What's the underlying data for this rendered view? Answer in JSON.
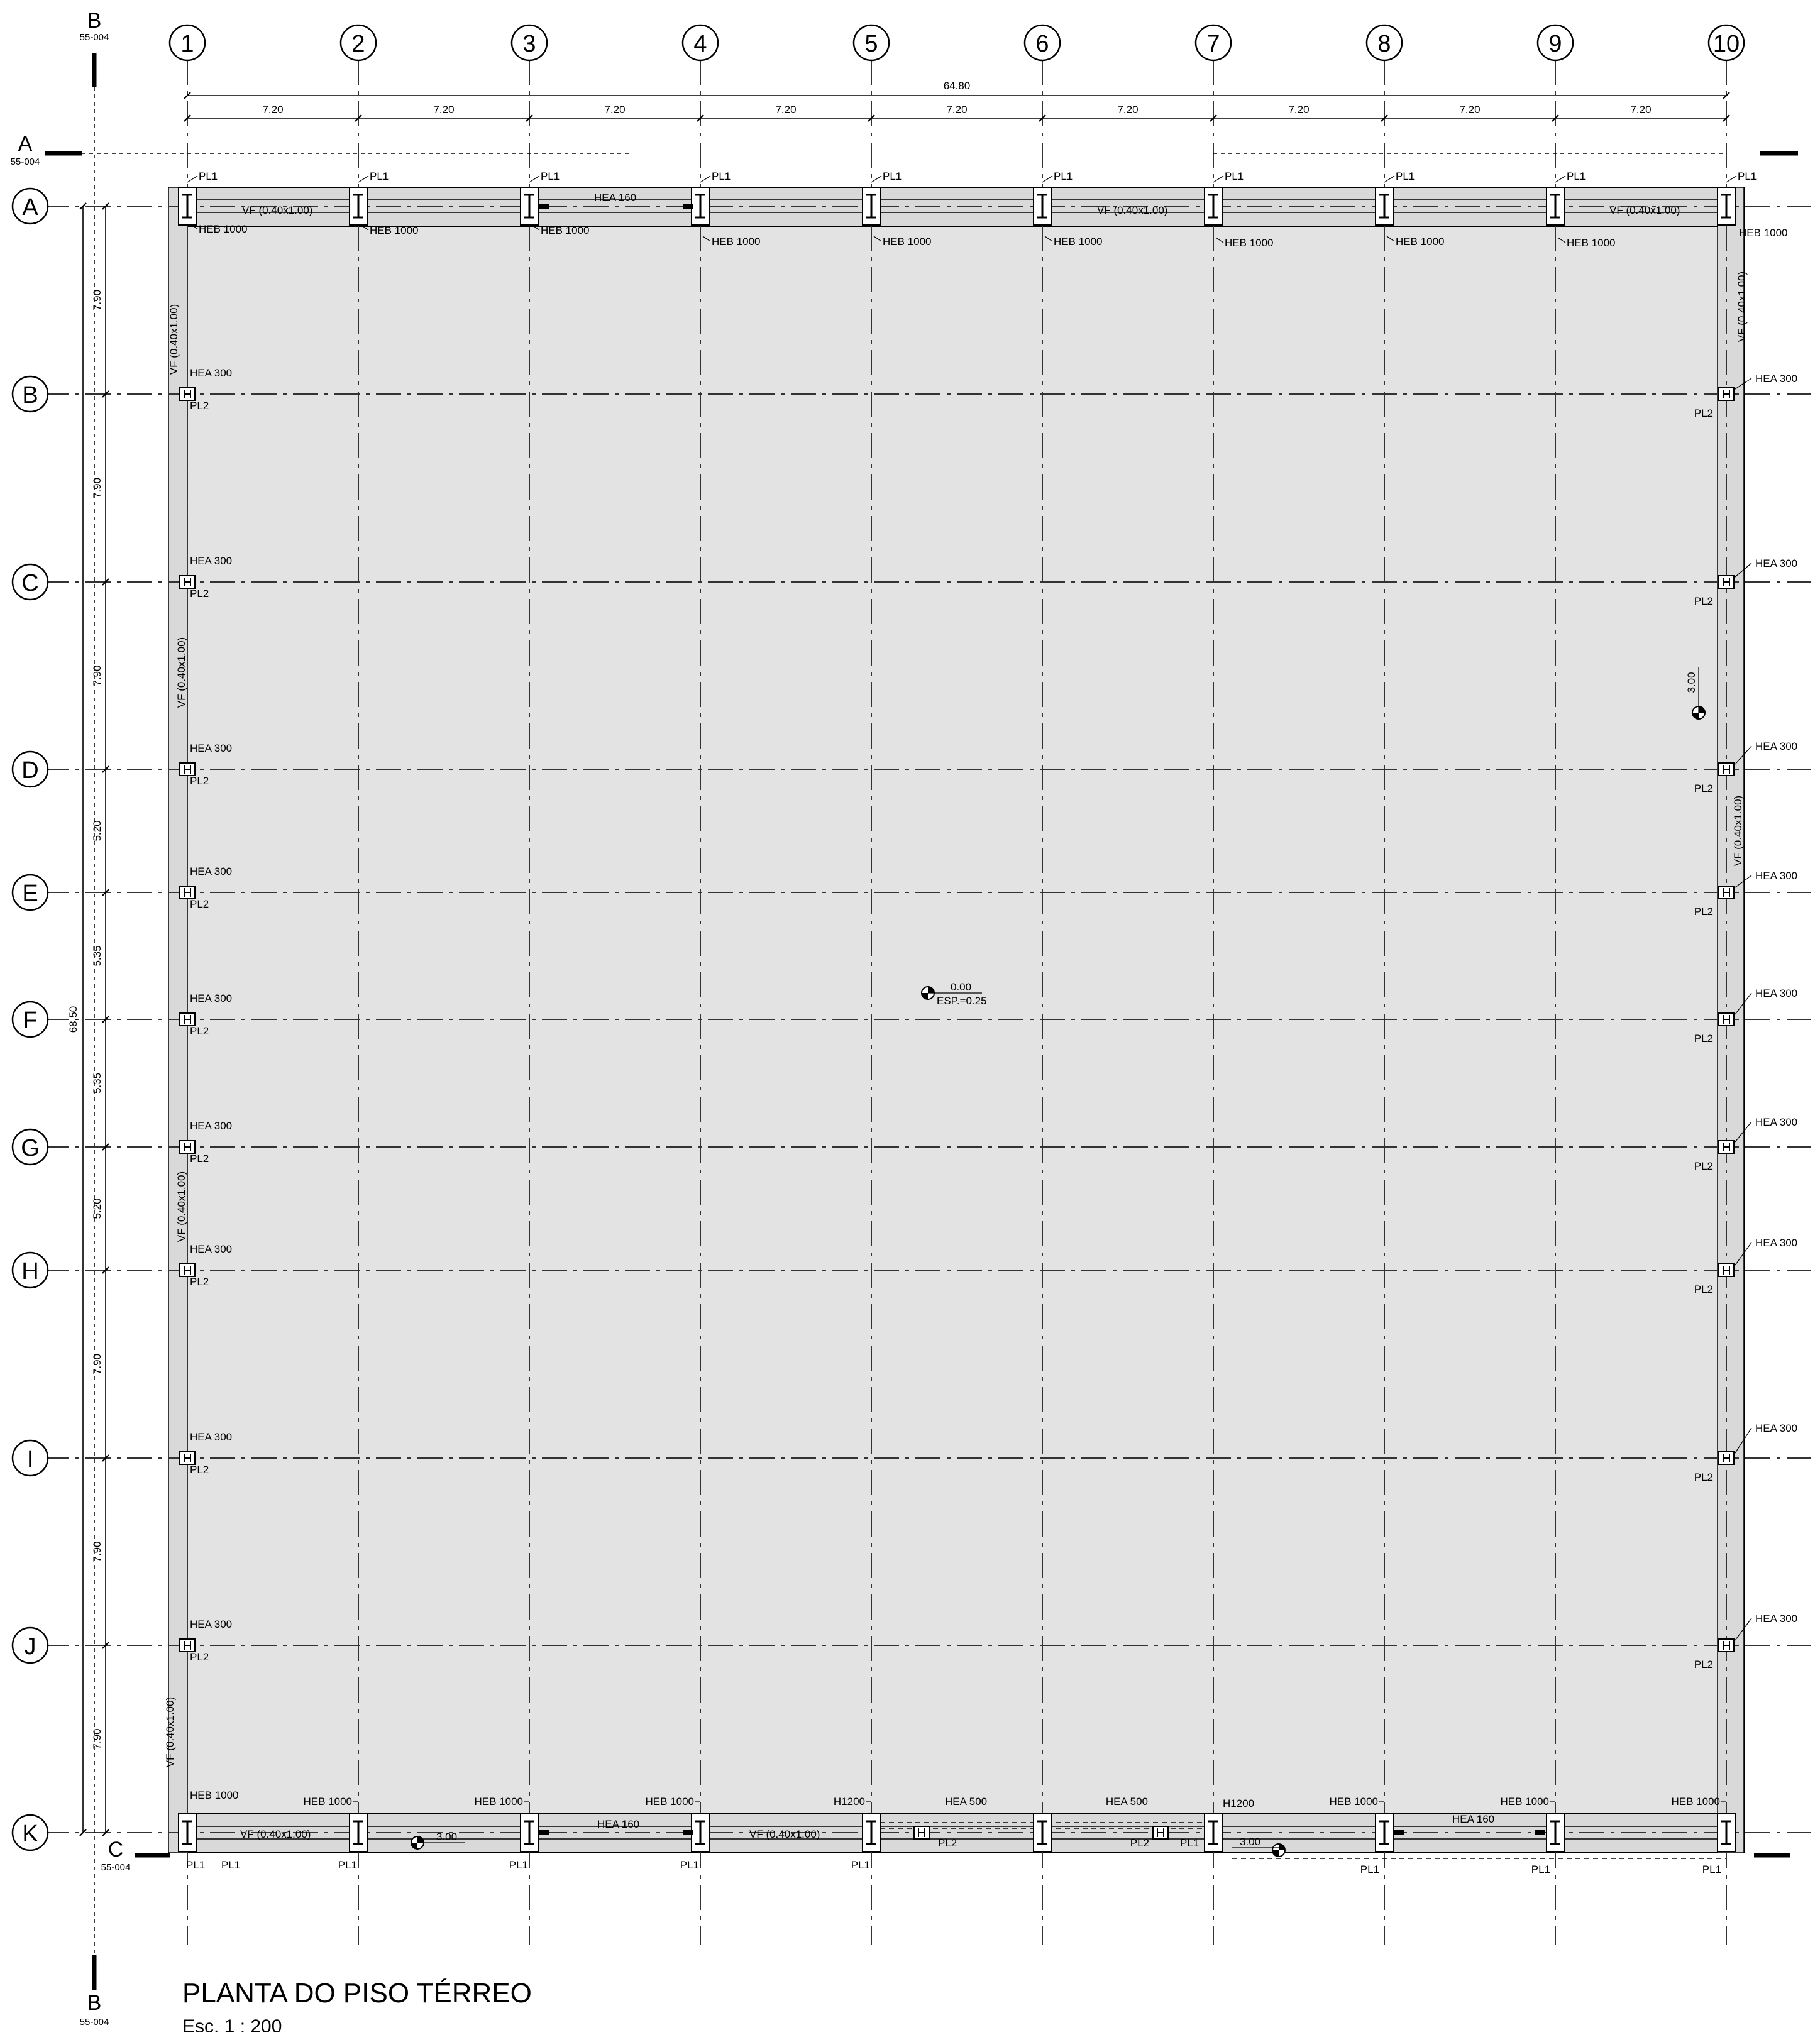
{
  "drawing": {
    "title": "PLANTA DO PISO TÉRREO",
    "scale": "Esc. 1 : 200"
  },
  "grid": {
    "columns": [
      "1",
      "2",
      "3",
      "4",
      "5",
      "6",
      "7",
      "8",
      "9",
      "10"
    ],
    "rows": [
      "A",
      "B",
      "C",
      "D",
      "E",
      "F",
      "G",
      "H",
      "I",
      "J",
      "K"
    ]
  },
  "dimensions": {
    "overall_width": "64.80",
    "bays_x": [
      "7.20",
      "7.20",
      "7.20",
      "7.20",
      "7.20",
      "7.20",
      "7.20",
      "7.20",
      "7.20"
    ],
    "overall_height": "68.50",
    "bays_y": [
      "7.90",
      "7.90",
      "7.90",
      "5.20",
      "5.35",
      "5.35",
      "5.20",
      "7.90",
      "7.90",
      "7.90"
    ]
  },
  "sections": [
    {
      "letter": "A",
      "ref": "55-004"
    },
    {
      "letter": "B",
      "ref": "55-004"
    },
    {
      "letter": "C",
      "ref": "55-004"
    }
  ],
  "labels": {
    "pl1": "PL1",
    "pl2": "PL2",
    "heb1000": "HEB 1000",
    "hea300": "HEA 300",
    "hea160": "HEA 160",
    "hea500": "HEA 500",
    "h1200": "H1200",
    "vf": "VF (0.40x1.00)"
  },
  "levels": {
    "center_level": "0.00",
    "center_thickness": "ESP.=0.25",
    "edge_level": "3.00"
  }
}
